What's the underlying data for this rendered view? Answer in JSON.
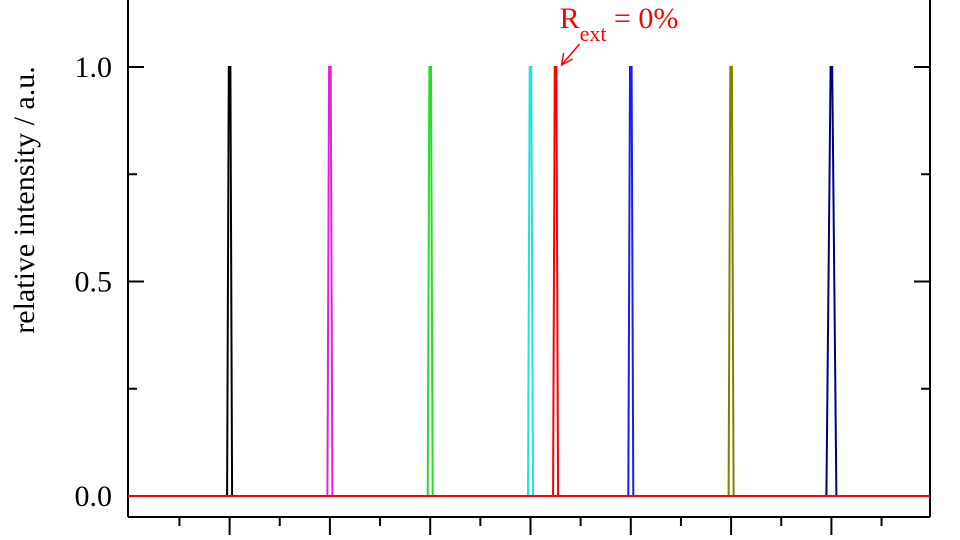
{
  "chart_data": {
    "type": "line",
    "ylabel": "relative intensity / a.u.",
    "xlabel": "",
    "ylim": [
      0,
      1
    ],
    "y_ticks": [
      "0.0",
      "0.5",
      "1.0"
    ],
    "y_tick_values": [
      0,
      0.5,
      1.0
    ],
    "grid": false,
    "x_major_ticks": [
      1,
      2,
      3,
      4,
      5,
      6,
      7
    ],
    "x_minor_ticks": [
      0.5,
      1.5,
      2.5,
      3.5,
      4.5,
      5.5,
      6.5,
      7.5
    ],
    "xlim": [
      0,
      8
    ],
    "series": [
      {
        "center": 1.0,
        "height": 1.0,
        "color": "#000000"
      },
      {
        "center": 2.0,
        "height": 1.0,
        "color": "#e020e0"
      },
      {
        "center": 3.0,
        "height": 1.0,
        "color": "#20e020"
      },
      {
        "center": 4.0,
        "height": 1.0,
        "color": "#20e0e0"
      },
      {
        "center": 4.25,
        "height": 1.0,
        "color": "#ff0000",
        "name": "R_ext = 0%"
      },
      {
        "center": 5.0,
        "height": 1.0,
        "color": "#1a1aff"
      },
      {
        "center": 6.0,
        "height": 1.0,
        "color": "#808000"
      },
      {
        "center": 7.0,
        "height": 1.0,
        "color": "#000080"
      }
    ],
    "baseline": {
      "value": 0,
      "color": "#ff0000"
    },
    "annotation": {
      "main": "R",
      "subscript": "ext",
      "rest": " = 0%",
      "color": "#ff0000",
      "target_series": 4
    }
  }
}
